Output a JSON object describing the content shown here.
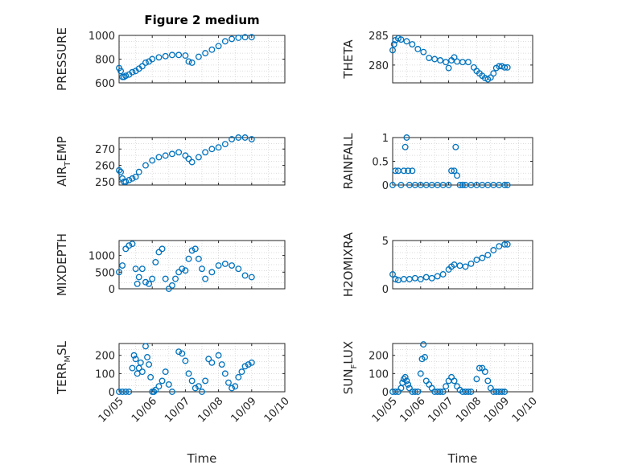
{
  "figure_title": "Figure 2 medium",
  "x_axis_label": "Time",
  "x_ticks": [
    "10/05",
    "10/06",
    "10/07",
    "10/08",
    "10/09",
    "10/10"
  ],
  "marker_color": "#0072BD",
  "chart_data": [
    {
      "type": "scatter",
      "panel": "pressure",
      "ylabel": {
        "main": "PRESSURE",
        "sub": ""
      },
      "ylim": [
        600,
        1000
      ],
      "yticks": [
        600,
        800,
        1000
      ],
      "xlim": [
        0,
        5
      ],
      "grid": true,
      "x": [
        0.0,
        0.05,
        0.1,
        0.15,
        0.2,
        0.3,
        0.4,
        0.5,
        0.6,
        0.7,
        0.8,
        0.9,
        1.0,
        1.2,
        1.4,
        1.6,
        1.8,
        2.0,
        2.1,
        2.2,
        2.4,
        2.6,
        2.8,
        3.0,
        3.2,
        3.4,
        3.6,
        3.8,
        4.0
      ],
      "y": [
        725,
        700,
        650,
        650,
        660,
        670,
        690,
        700,
        720,
        740,
        770,
        780,
        800,
        815,
        825,
        835,
        835,
        830,
        780,
        770,
        820,
        850,
        880,
        910,
        950,
        970,
        980,
        985,
        985
      ]
    },
    {
      "type": "scatter",
      "panel": "theta",
      "ylabel": {
        "main": "THETA",
        "sub": ""
      },
      "ylim": [
        277,
        285
      ],
      "yticks": [
        280,
        285
      ],
      "xlim": [
        0,
        5
      ],
      "grid": true,
      "x": [
        0.0,
        0.05,
        0.1,
        0.2,
        0.3,
        0.5,
        0.7,
        0.9,
        1.1,
        1.3,
        1.5,
        1.7,
        1.9,
        2.0,
        2.1,
        2.2,
        2.3,
        2.5,
        2.7,
        2.9,
        3.0,
        3.1,
        3.2,
        3.3,
        3.4,
        3.5,
        3.6,
        3.7,
        3.8,
        3.9,
        4.0,
        4.1
      ],
      "y": [
        282.5,
        283.5,
        284.2,
        284.5,
        284.3,
        284.0,
        283.5,
        282.7,
        282.2,
        281.2,
        281.0,
        280.8,
        280.5,
        279.5,
        280.8,
        281.3,
        280.6,
        280.5,
        280.5,
        279.6,
        279.0,
        278.6,
        278.2,
        277.8,
        277.6,
        277.9,
        278.6,
        279.5,
        279.8,
        279.8,
        279.6,
        279.6
      ]
    },
    {
      "type": "scatter",
      "panel": "air_temp",
      "ylabel": {
        "main": "AIR",
        "sub": "T",
        "tail": "EMP"
      },
      "ylim": [
        248,
        277
      ],
      "yticks": [
        250,
        260,
        270
      ],
      "xlim": [
        0,
        5
      ],
      "grid": true,
      "x": [
        0.0,
        0.05,
        0.1,
        0.15,
        0.2,
        0.3,
        0.4,
        0.5,
        0.6,
        0.8,
        1.0,
        1.2,
        1.4,
        1.6,
        1.8,
        2.0,
        2.1,
        2.2,
        2.4,
        2.6,
        2.8,
        3.0,
        3.2,
        3.4,
        3.6,
        3.8,
        4.0
      ],
      "y": [
        257,
        256,
        252,
        250,
        250,
        251,
        252,
        253,
        256,
        260,
        263,
        265,
        266,
        267,
        268,
        266,
        264,
        262,
        265,
        268,
        270,
        271,
        273,
        276,
        277,
        277,
        276
      ]
    },
    {
      "type": "scatter",
      "panel": "rainfall",
      "ylabel": {
        "main": "RAINFALL",
        "sub": ""
      },
      "ylim": [
        0,
        1
      ],
      "yticks": [
        0,
        0.5,
        1
      ],
      "xlim": [
        0,
        5
      ],
      "grid": true,
      "x": [
        0.0,
        0.1,
        0.2,
        0.3,
        0.4,
        0.45,
        0.5,
        0.55,
        0.6,
        0.7,
        0.8,
        1.0,
        1.2,
        1.4,
        1.6,
        1.8,
        2.0,
        2.1,
        2.2,
        2.25,
        2.3,
        2.4,
        2.5,
        2.6,
        2.8,
        3.0,
        3.2,
        3.4,
        3.6,
        3.8,
        4.0,
        4.1
      ],
      "y": [
        0,
        0.3,
        0.3,
        0,
        0.3,
        0.8,
        1.0,
        0.3,
        0,
        0.3,
        0,
        0,
        0,
        0,
        0,
        0,
        0,
        0.3,
        0.3,
        0.8,
        0.2,
        0,
        0,
        0,
        0,
        0,
        0,
        0,
        0,
        0,
        0,
        0
      ]
    },
    {
      "type": "scatter",
      "panel": "mixdepth",
      "ylabel": {
        "main": "MIXDEPTH",
        "sub": ""
      },
      "ylim": [
        0,
        1450
      ],
      "yticks": [
        0,
        500,
        1000
      ],
      "xlim": [
        0,
        5
      ],
      "grid": true,
      "x": [
        0.0,
        0.1,
        0.2,
        0.3,
        0.4,
        0.5,
        0.55,
        0.6,
        0.7,
        0.8,
        0.9,
        1.0,
        1.1,
        1.2,
        1.3,
        1.4,
        1.5,
        1.6,
        1.7,
        1.8,
        1.9,
        2.0,
        2.1,
        2.2,
        2.3,
        2.4,
        2.5,
        2.6,
        2.8,
        3.0,
        3.2,
        3.4,
        3.6,
        3.8,
        4.0
      ],
      "y": [
        500,
        700,
        1200,
        1300,
        1350,
        600,
        150,
        350,
        600,
        200,
        150,
        300,
        800,
        1100,
        1200,
        300,
        0,
        100,
        300,
        500,
        600,
        550,
        900,
        1150,
        1200,
        900,
        600,
        300,
        500,
        700,
        750,
        700,
        600,
        400,
        350
      ]
    },
    {
      "type": "scatter",
      "panel": "h2omixra",
      "ylabel": {
        "main": "H2OMIXRA",
        "sub": ""
      },
      "ylim": [
        0,
        5
      ],
      "yticks": [
        0,
        5
      ],
      "xlim": [
        0,
        5
      ],
      "grid": true,
      "x": [
        0.0,
        0.1,
        0.2,
        0.4,
        0.6,
        0.8,
        1.0,
        1.2,
        1.4,
        1.6,
        1.8,
        2.0,
        2.1,
        2.2,
        2.4,
        2.6,
        2.8,
        3.0,
        3.2,
        3.4,
        3.6,
        3.8,
        4.0,
        4.1
      ],
      "y": [
        1.5,
        1.0,
        0.9,
        1.0,
        1.0,
        1.1,
        1.0,
        1.2,
        1.1,
        1.3,
        1.5,
        2.0,
        2.3,
        2.5,
        2.4,
        2.3,
        2.6,
        3.0,
        3.2,
        3.5,
        4.0,
        4.4,
        4.6,
        4.6
      ]
    },
    {
      "type": "scatter",
      "panel": "terr_msl",
      "ylabel": {
        "main": "TERR",
        "sub": "M",
        "tail": "SL"
      },
      "ylim": [
        0,
        265
      ],
      "yticks": [
        0,
        100,
        200
      ],
      "xlim": [
        0,
        5
      ],
      "grid": true,
      "x": [
        0.0,
        0.1,
        0.2,
        0.3,
        0.4,
        0.45,
        0.5,
        0.55,
        0.6,
        0.65,
        0.7,
        0.8,
        0.85,
        0.9,
        0.95,
        1.0,
        1.05,
        1.1,
        1.2,
        1.3,
        1.4,
        1.5,
        1.6,
        1.8,
        1.9,
        2.0,
        2.1,
        2.2,
        2.3,
        2.4,
        2.5,
        2.6,
        2.7,
        2.8,
        3.0,
        3.1,
        3.2,
        3.3,
        3.4,
        3.5,
        3.6,
        3.7,
        3.8,
        3.9,
        4.0
      ],
      "y": [
        0,
        0,
        0,
        0,
        130,
        200,
        180,
        100,
        130,
        160,
        110,
        250,
        190,
        150,
        80,
        0,
        0,
        10,
        30,
        60,
        110,
        40,
        0,
        220,
        210,
        170,
        100,
        60,
        20,
        30,
        0,
        60,
        180,
        160,
        200,
        150,
        100,
        50,
        20,
        30,
        80,
        110,
        140,
        150,
        160
      ]
    },
    {
      "type": "scatter",
      "panel": "sun_flux",
      "ylabel": {
        "main": "SUN",
        "sub": "F",
        "tail": "LUX"
      },
      "ylim": [
        0,
        265
      ],
      "yticks": [
        0,
        100,
        200
      ],
      "xlim": [
        0,
        5
      ],
      "grid": true,
      "x": [
        0.0,
        0.1,
        0.2,
        0.3,
        0.35,
        0.4,
        0.45,
        0.5,
        0.55,
        0.6,
        0.7,
        0.8,
        0.9,
        1.0,
        1.05,
        1.1,
        1.15,
        1.2,
        1.3,
        1.4,
        1.5,
        1.6,
        1.7,
        1.8,
        1.9,
        2.0,
        2.1,
        2.2,
        2.3,
        2.4,
        2.5,
        2.6,
        2.7,
        2.8,
        3.0,
        3.1,
        3.2,
        3.3,
        3.4,
        3.5,
        3.6,
        3.7,
        3.8,
        3.9,
        4.0
      ],
      "y": [
        0,
        0,
        0,
        20,
        50,
        70,
        80,
        60,
        40,
        20,
        0,
        0,
        0,
        100,
        180,
        260,
        190,
        60,
        40,
        20,
        0,
        0,
        0,
        0,
        30,
        60,
        80,
        60,
        30,
        10,
        0,
        0,
        0,
        0,
        70,
        130,
        130,
        110,
        60,
        20,
        0,
        0,
        0,
        0,
        0
      ]
    }
  ]
}
